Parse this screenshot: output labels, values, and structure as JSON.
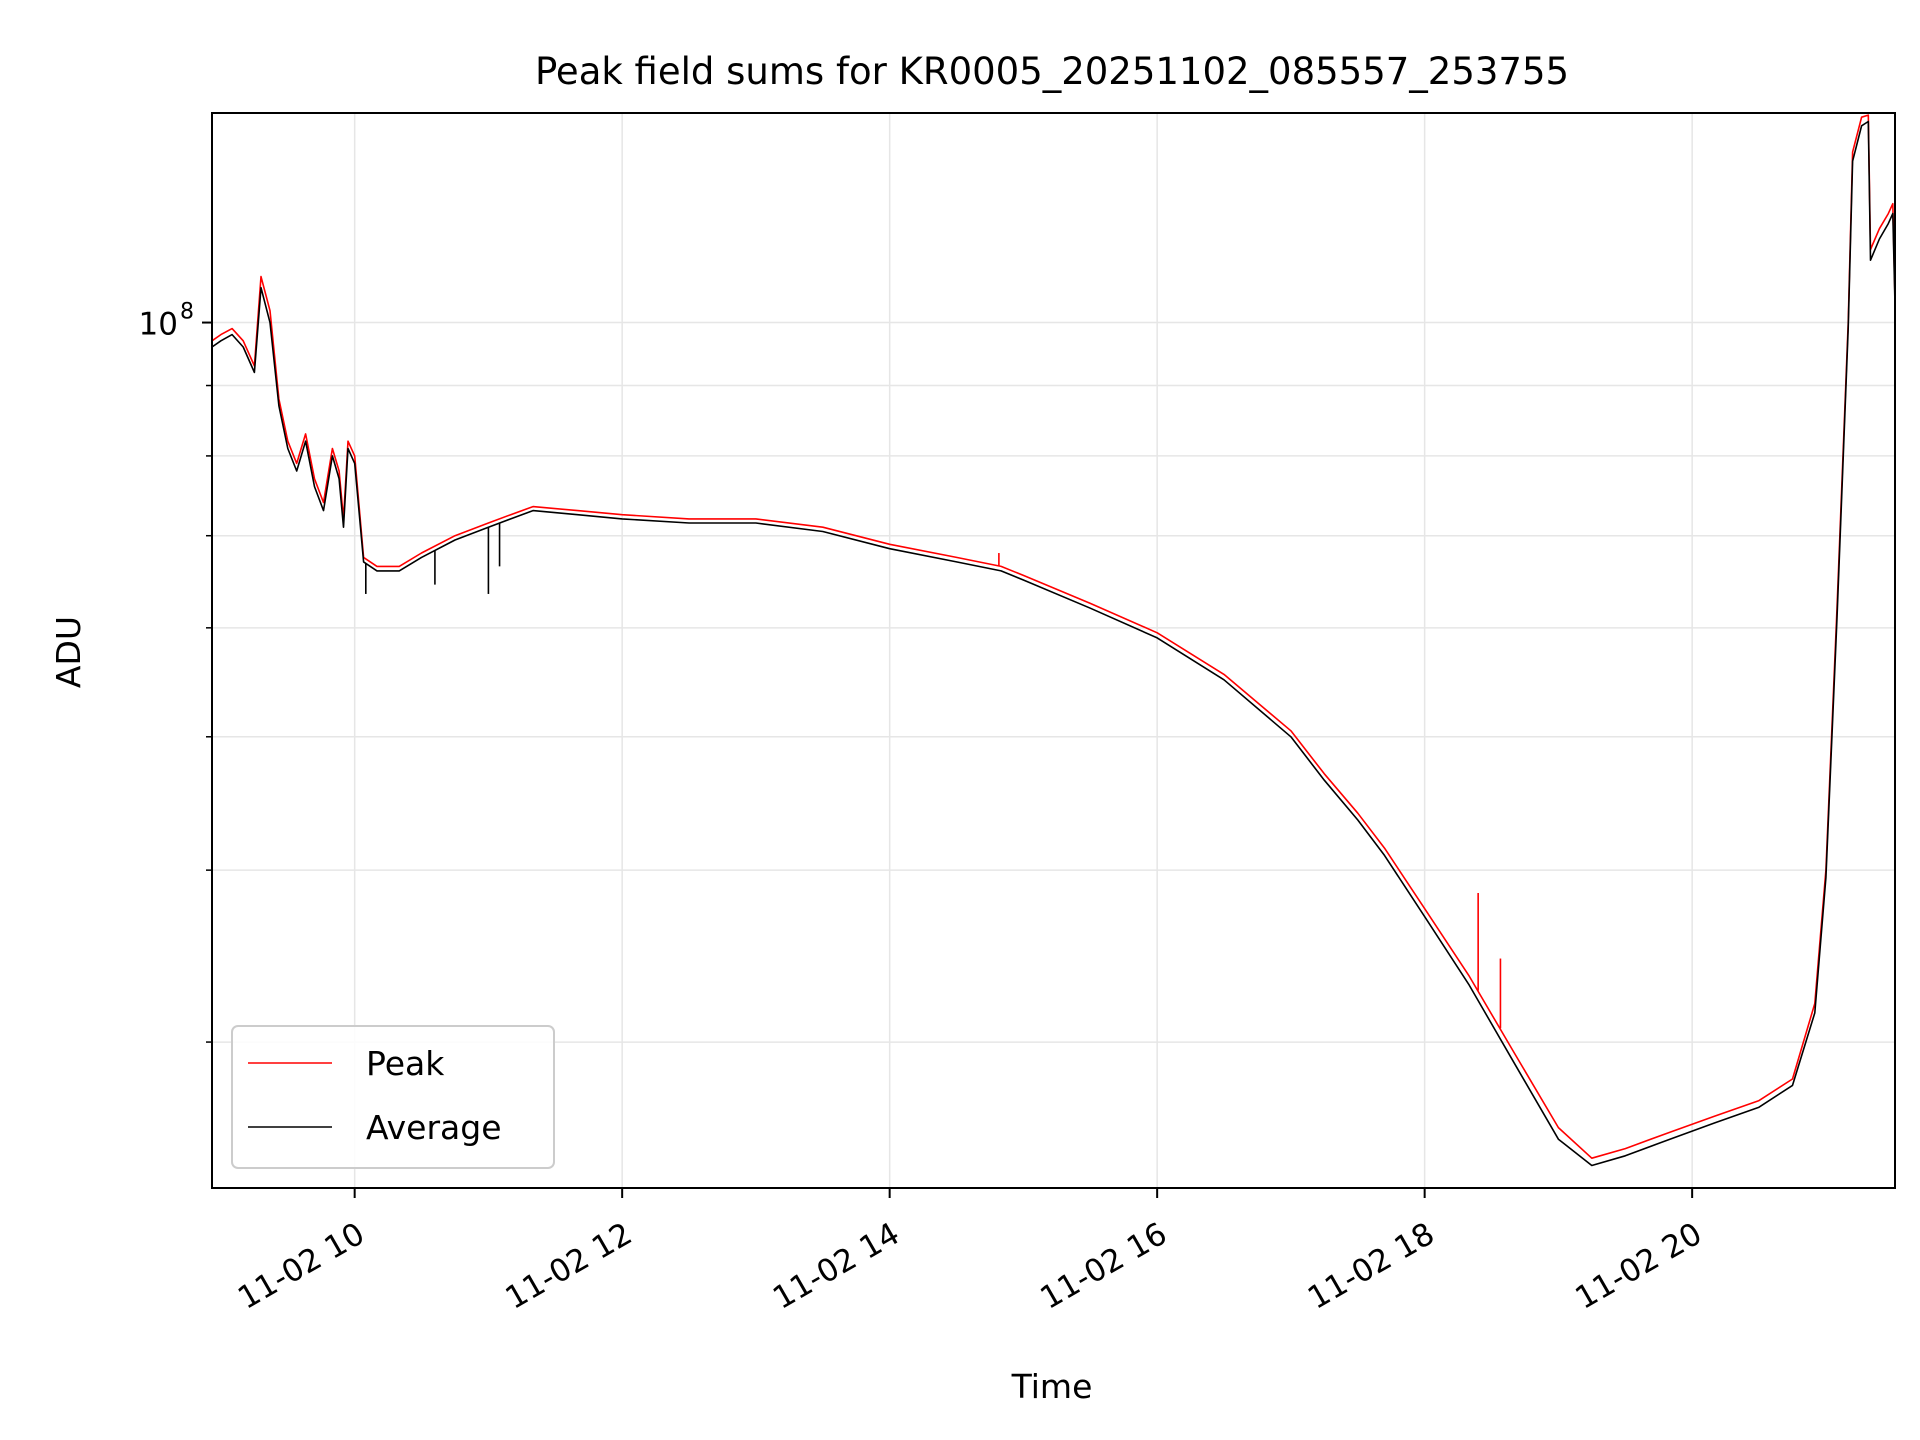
{
  "chart_data": {
    "type": "line",
    "title": "Peak field sums for KR0005_20251102_085557_253755",
    "xlabel": "Time",
    "ylabel": "ADU",
    "y_scale": "log",
    "ylim": [
      23500000,
      142000000
    ],
    "xlim": [
      "2025-11-02 08:56",
      "2025-11-02 21:31"
    ],
    "x_ticks": [
      "11-02 10",
      "11-02 12",
      "11-02 14",
      "11-02 16",
      "11-02 18",
      "11-02 20"
    ],
    "x_tick_times": [
      "2025-11-02 10:00",
      "2025-11-02 12:00",
      "2025-11-02 14:00",
      "2025-11-02 16:00",
      "2025-11-02 18:00",
      "2025-11-02 20:00"
    ],
    "y_major_ticks": [
      {
        "value": 100000000,
        "base": "10",
        "exp": "8"
      }
    ],
    "y_minor_ticks": [
      30000000,
      40000000,
      50000000,
      60000000,
      70000000,
      80000000,
      90000000
    ],
    "grid": true,
    "legend": {
      "placement": "bottom-left",
      "entries": [
        "Peak",
        "Average"
      ]
    },
    "colors": {
      "Peak": "#ff0000",
      "Average": "#000000",
      "grid": "#e6e6e6"
    },
    "series": [
      {
        "name": "Peak",
        "color": "#ff0000",
        "points": [
          [
            "2025-11-02 08:56",
            97000000
          ],
          [
            "2025-11-02 09:00",
            98000000
          ],
          [
            "2025-11-02 09:05",
            99000000
          ],
          [
            "2025-11-02 09:10",
            97000000
          ],
          [
            "2025-11-02 09:15",
            93000000
          ],
          [
            "2025-11-02 09:18",
            108000000
          ],
          [
            "2025-11-02 09:22",
            102000000
          ],
          [
            "2025-11-02 09:26",
            88000000
          ],
          [
            "2025-11-02 09:30",
            82000000
          ],
          [
            "2025-11-02 09:34",
            79000000
          ],
          [
            "2025-11-02 09:38",
            83000000
          ],
          [
            "2025-11-02 09:42",
            77000000
          ],
          [
            "2025-11-02 09:46",
            74000000
          ],
          [
            "2025-11-02 09:50",
            81000000
          ],
          [
            "2025-11-02 09:53",
            78000000
          ],
          [
            "2025-11-02 09:55",
            72000000
          ],
          [
            "2025-11-02 09:57",
            82000000
          ],
          [
            "2025-11-02 10:00",
            80000000
          ],
          [
            "2025-11-02 10:04",
            67500000
          ],
          [
            "2025-11-02 10:10",
            66500000
          ],
          [
            "2025-11-02 10:20",
            66500000
          ],
          [
            "2025-11-02 10:30",
            68000000
          ],
          [
            "2025-11-02 10:45",
            70000000
          ],
          [
            "2025-11-02 11:00",
            71500000
          ],
          [
            "2025-11-02 11:10",
            72500000
          ],
          [
            "2025-11-02 11:20",
            73500000
          ],
          [
            "2025-11-02 11:40",
            73000000
          ],
          [
            "2025-11-02 12:00",
            72500000
          ],
          [
            "2025-11-02 12:30",
            72000000
          ],
          [
            "2025-11-02 13:00",
            72000000
          ],
          [
            "2025-11-02 13:30",
            71000000
          ],
          [
            "2025-11-02 14:00",
            69000000
          ],
          [
            "2025-11-02 14:30",
            67500000
          ],
          [
            "2025-11-02 14:50",
            66500000
          ],
          [
            "2025-11-02 15:00",
            65500000
          ],
          [
            "2025-11-02 15:30",
            62500000
          ],
          [
            "2025-11-02 16:00",
            59500000
          ],
          [
            "2025-11-02 16:30",
            55500000
          ],
          [
            "2025-11-02 17:00",
            50500000
          ],
          [
            "2025-11-02 17:15",
            47000000
          ],
          [
            "2025-11-02 17:30",
            44000000
          ],
          [
            "2025-11-02 17:42",
            41500000
          ],
          [
            "2025-11-02 18:00",
            37500000
          ],
          [
            "2025-11-02 18:20",
            33500000
          ],
          [
            "2025-11-02 18:40",
            29500000
          ],
          [
            "2025-11-02 19:00",
            26000000
          ],
          [
            "2025-11-02 19:15",
            24700000
          ],
          [
            "2025-11-02 19:30",
            25100000
          ],
          [
            "2025-11-02 19:50",
            25800000
          ],
          [
            "2025-11-02 20:10",
            26500000
          ],
          [
            "2025-11-02 20:30",
            27200000
          ],
          [
            "2025-11-02 20:45",
            28200000
          ],
          [
            "2025-11-02 20:55",
            32000000
          ],
          [
            "2025-11-02 21:00",
            40000000
          ],
          [
            "2025-11-02 21:05",
            62000000
          ],
          [
            "2025-11-02 21:10",
            100000000
          ],
          [
            "2025-11-02 21:12",
            133000000
          ],
          [
            "2025-11-02 21:16",
            141000000
          ],
          [
            "2025-11-02 21:19",
            141500000
          ],
          [
            "2025-11-02 21:20",
            113000000
          ],
          [
            "2025-11-02 21:24",
            117000000
          ],
          [
            "2025-11-02 21:28",
            120000000
          ],
          [
            "2025-11-02 21:30",
            122000000
          ],
          [
            "2025-11-02 21:31",
            104000000
          ]
        ]
      },
      {
        "name": "Average",
        "color": "#000000",
        "points": [
          [
            "2025-11-02 08:56",
            96000000
          ],
          [
            "2025-11-02 09:00",
            97000000
          ],
          [
            "2025-11-02 09:05",
            98000000
          ],
          [
            "2025-11-02 09:10",
            96000000
          ],
          [
            "2025-11-02 09:15",
            92000000
          ],
          [
            "2025-11-02 09:18",
            106000000
          ],
          [
            "2025-11-02 09:22",
            100000000
          ],
          [
            "2025-11-02 09:26",
            87000000
          ],
          [
            "2025-11-02 09:30",
            81000000
          ],
          [
            "2025-11-02 09:34",
            78000000
          ],
          [
            "2025-11-02 09:38",
            82000000
          ],
          [
            "2025-11-02 09:42",
            76000000
          ],
          [
            "2025-11-02 09:46",
            73000000
          ],
          [
            "2025-11-02 09:50",
            80000000
          ],
          [
            "2025-11-02 09:53",
            77000000
          ],
          [
            "2025-11-02 09:55",
            71000000
          ],
          [
            "2025-11-02 09:57",
            81000000
          ],
          [
            "2025-11-02 10:00",
            79000000
          ],
          [
            "2025-11-02 10:04",
            67000000
          ],
          [
            "2025-11-02 10:10",
            66000000
          ],
          [
            "2025-11-02 10:20",
            66000000
          ],
          [
            "2025-11-02 10:30",
            67500000
          ],
          [
            "2025-11-02 10:45",
            69500000
          ],
          [
            "2025-11-02 11:00",
            71000000
          ],
          [
            "2025-11-02 11:10",
            72000000
          ],
          [
            "2025-11-02 11:20",
            73000000
          ],
          [
            "2025-11-02 11:40",
            72500000
          ],
          [
            "2025-11-02 12:00",
            72000000
          ],
          [
            "2025-11-02 12:30",
            71500000
          ],
          [
            "2025-11-02 13:00",
            71500000
          ],
          [
            "2025-11-02 13:30",
            70500000
          ],
          [
            "2025-11-02 14:00",
            68500000
          ],
          [
            "2025-11-02 14:30",
            67000000
          ],
          [
            "2025-11-02 14:50",
            66000000
          ],
          [
            "2025-11-02 15:00",
            65000000
          ],
          [
            "2025-11-02 15:30",
            62000000
          ],
          [
            "2025-11-02 16:00",
            59000000
          ],
          [
            "2025-11-02 16:30",
            55000000
          ],
          [
            "2025-11-02 17:00",
            50000000
          ],
          [
            "2025-11-02 17:15",
            46500000
          ],
          [
            "2025-11-02 17:30",
            43500000
          ],
          [
            "2025-11-02 17:42",
            41000000
          ],
          [
            "2025-11-02 18:00",
            37000000
          ],
          [
            "2025-11-02 18:20",
            33000000
          ],
          [
            "2025-11-02 18:40",
            29000000
          ],
          [
            "2025-11-02 19:00",
            25500000
          ],
          [
            "2025-11-02 19:15",
            24400000
          ],
          [
            "2025-11-02 19:30",
            24800000
          ],
          [
            "2025-11-02 19:50",
            25500000
          ],
          [
            "2025-11-02 20:10",
            26200000
          ],
          [
            "2025-11-02 20:30",
            26900000
          ],
          [
            "2025-11-02 20:45",
            27900000
          ],
          [
            "2025-11-02 20:55",
            31500000
          ],
          [
            "2025-11-02 21:00",
            39500000
          ],
          [
            "2025-11-02 21:05",
            61000000
          ],
          [
            "2025-11-02 21:10",
            99000000
          ],
          [
            "2025-11-02 21:12",
            131000000
          ],
          [
            "2025-11-02 21:16",
            139000000
          ],
          [
            "2025-11-02 21:19",
            140000000
          ],
          [
            "2025-11-02 21:20",
            111000000
          ],
          [
            "2025-11-02 21:24",
            115000000
          ],
          [
            "2025-11-02 21:28",
            118000000
          ],
          [
            "2025-11-02 21:30",
            120000000
          ],
          [
            "2025-11-02 21:31",
            103000000
          ]
        ]
      }
    ],
    "annotations": [
      {
        "series": "Average",
        "note": "dip",
        "time": "2025-11-02 10:05",
        "value": 63500000
      },
      {
        "series": "Average",
        "note": "dip",
        "time": "2025-11-02 10:36",
        "value": 64500000
      },
      {
        "series": "Average",
        "note": "dip",
        "time": "2025-11-02 11:00",
        "value": 63500000
      },
      {
        "series": "Average",
        "note": "dip",
        "time": "2025-11-02 11:05",
        "value": 66500000
      },
      {
        "series": "Peak",
        "note": "spike",
        "time": "2025-11-02 14:49",
        "value": 68000000
      },
      {
        "series": "Peak",
        "note": "spike",
        "time": "2025-11-02 18:24",
        "value": 38500000
      },
      {
        "series": "Peak",
        "note": "spike",
        "time": "2025-11-02 18:34",
        "value": 34500000
      }
    ]
  }
}
